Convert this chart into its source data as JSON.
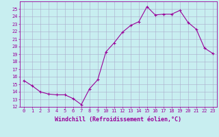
{
  "x": [
    0,
    1,
    2,
    3,
    4,
    5,
    6,
    7,
    8,
    9,
    10,
    11,
    12,
    13,
    14,
    15,
    16,
    17,
    18,
    19,
    20,
    21,
    22,
    23
  ],
  "y": [
    15.5,
    14.8,
    14.0,
    13.7,
    13.6,
    13.6,
    13.1,
    12.3,
    14.4,
    15.6,
    19.3,
    20.5,
    21.9,
    22.8,
    23.3,
    25.3,
    24.2,
    24.3,
    24.3,
    24.8,
    23.2,
    22.3,
    19.8,
    19.1
  ],
  "line_color": "#990099",
  "marker": "+",
  "background_color": "#c8eef0",
  "grid_color": "#aaaacc",
  "ylim": [
    12,
    26
  ],
  "yticks": [
    12,
    13,
    14,
    15,
    16,
    17,
    18,
    19,
    20,
    21,
    22,
    23,
    24,
    25
  ],
  "xlabel": "Windchill (Refroidissement éolien,°C)",
  "tick_color": "#990099",
  "font_color": "#990099",
  "tick_fontsize": 5.0,
  "xlabel_fontsize": 6.0
}
